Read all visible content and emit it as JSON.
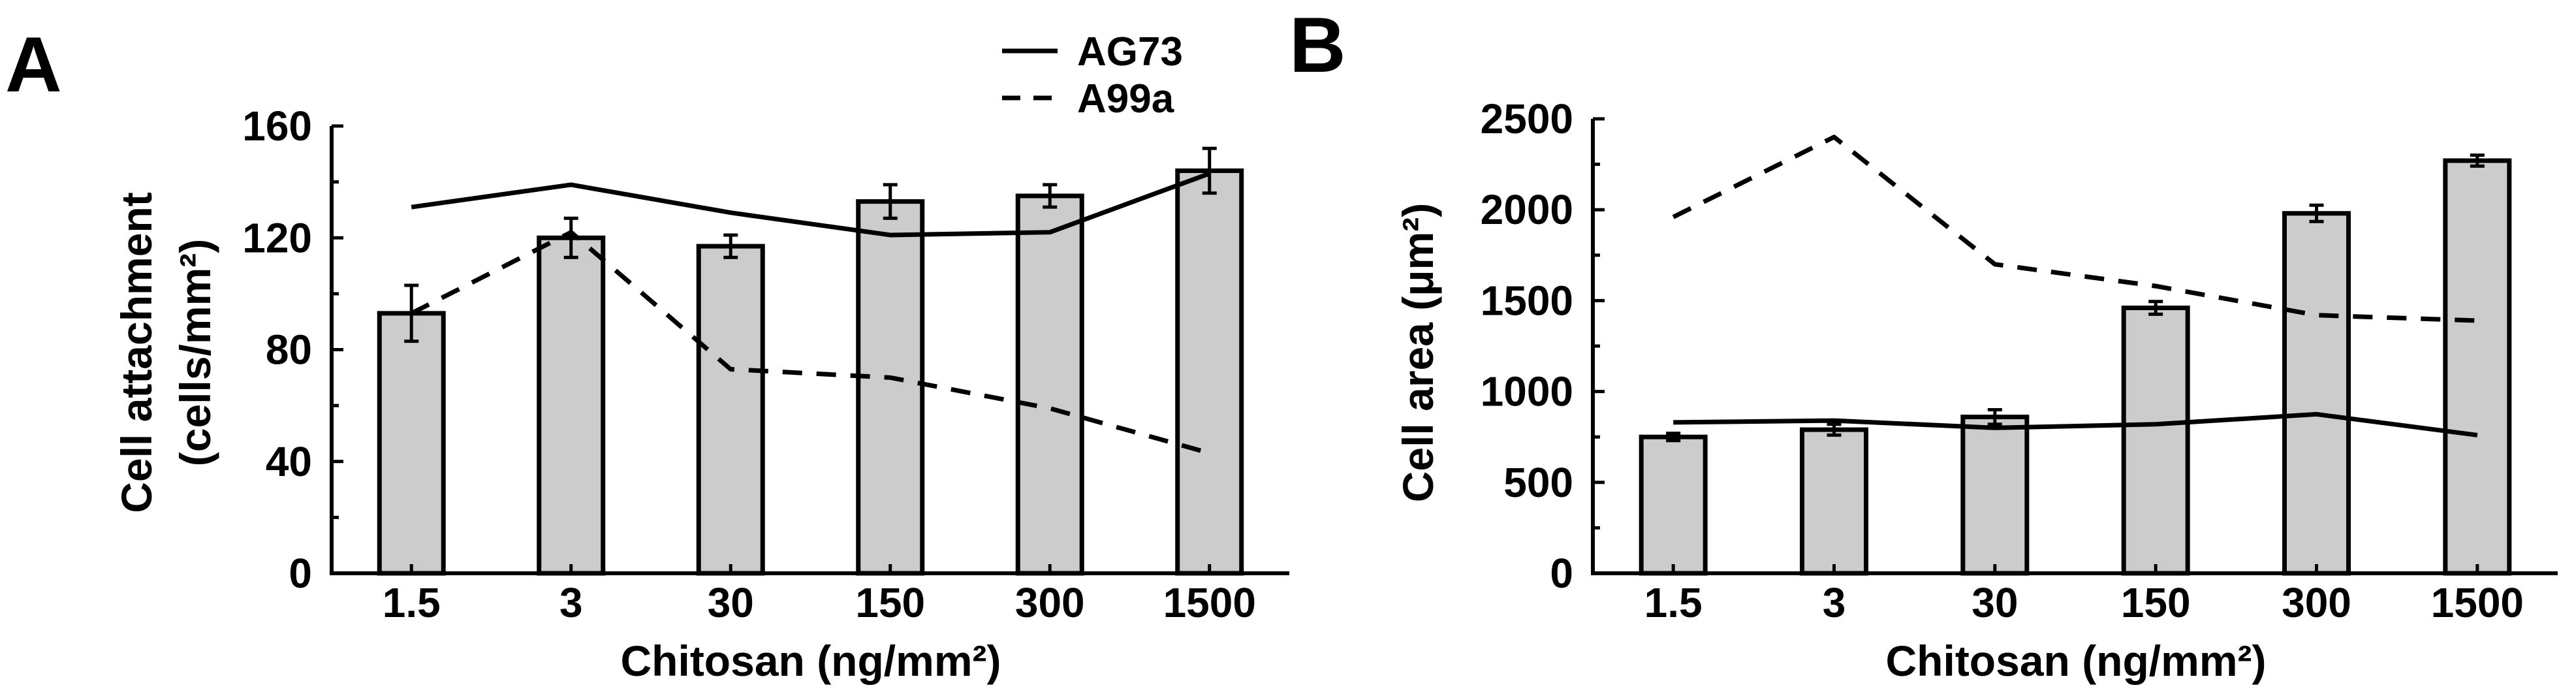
{
  "chart_data": [
    {
      "type": "bar",
      "panel_label": "A",
      "categories": [
        "1.5",
        "3",
        "30",
        "150",
        "300",
        "1500"
      ],
      "values": [
        93,
        120,
        117,
        133,
        135,
        144
      ],
      "errors": [
        10,
        7,
        4,
        6,
        4,
        8
      ],
      "lines": [
        {
          "name": "AG73",
          "style": "solid",
          "values": [
            131,
            139,
            129,
            121,
            122,
            143
          ]
        },
        {
          "name": "A99a",
          "style": "dashed",
          "values": [
            93,
            122,
            73,
            70,
            59,
            43
          ]
        }
      ],
      "ylim": [
        0,
        160
      ],
      "yticks": [
        "0",
        "40",
        "80",
        "120",
        "160"
      ],
      "ytick_values": [
        0,
        40,
        80,
        120,
        160
      ],
      "xlabel": "Chitosan (ng/mm²)",
      "ylabel_line1": "Cell attachment",
      "ylabel_line2": "(cells/mm²)",
      "legend_position": "top-right",
      "grid": false
    },
    {
      "type": "bar",
      "panel_label": "B",
      "categories": [
        "1.5",
        "3",
        "30",
        "150",
        "300",
        "1500"
      ],
      "values": [
        750,
        790,
        860,
        1460,
        1980,
        2270
      ],
      "errors": [
        20,
        30,
        40,
        35,
        45,
        30
      ],
      "lines": [
        {
          "name": "AG73",
          "style": "solid",
          "values": [
            830,
            840,
            800,
            820,
            875,
            760
          ]
        },
        {
          "name": "A99a",
          "style": "dashed",
          "values": [
            1960,
            2400,
            1700,
            1580,
            1420,
            1390
          ]
        }
      ],
      "ylim": [
        0,
        2500
      ],
      "yticks": [
        "0",
        "500",
        "1000",
        "1500",
        "2000",
        "2500"
      ],
      "ytick_values": [
        0,
        500,
        1000,
        1500,
        2000,
        2500
      ],
      "xlabel": "Chitosan (ng/mm²)",
      "ylabel": "Cell area (μm²)",
      "grid": false
    }
  ],
  "colors": {
    "bar_fill": "#cccccc",
    "stroke": "#000000"
  }
}
